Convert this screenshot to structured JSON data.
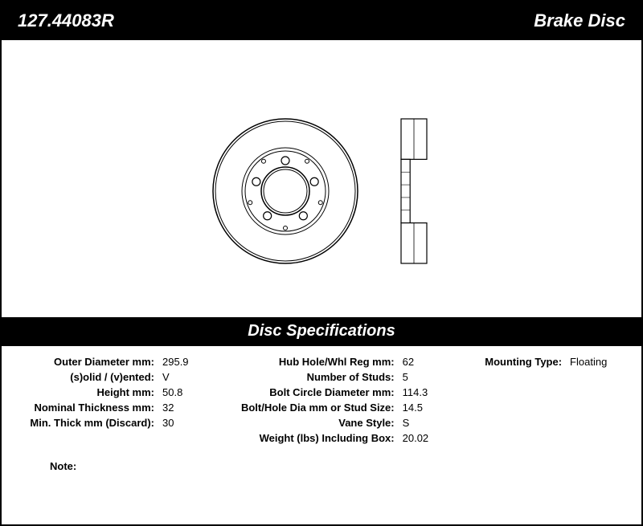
{
  "header": {
    "part_number": "127.44083R",
    "product_type": "Brake Disc"
  },
  "section_title": "Disc Specifications",
  "specs": {
    "col1": [
      {
        "label": "Outer Diameter mm:",
        "value": "295.9"
      },
      {
        "label": "(s)olid / (v)ented:",
        "value": "V"
      },
      {
        "label": "Height mm:",
        "value": "50.8"
      },
      {
        "label": "Nominal Thickness mm:",
        "value": "32"
      },
      {
        "label": "Min. Thick mm (Discard):",
        "value": "30"
      }
    ],
    "col2": [
      {
        "label": "Hub Hole/Whl Reg mm:",
        "value": "62"
      },
      {
        "label": "Number of Studs:",
        "value": "5"
      },
      {
        "label": "Bolt Circle Diameter mm:",
        "value": "114.3"
      },
      {
        "label": "Bolt/Hole Dia mm or Stud Size:",
        "value": "14.5"
      },
      {
        "label": "Vane Style:",
        "value": "S"
      },
      {
        "label": "Weight (lbs) Including Box:",
        "value": "20.02"
      }
    ],
    "col3": [
      {
        "label": "Mounting Type:",
        "value": "Floating"
      }
    ]
  },
  "note_label": "Note:",
  "diagram": {
    "front_outer_r": 90,
    "front_inner_r": 30,
    "hub_r": 50,
    "stud_count": 5,
    "stud_r": 5,
    "stud_orbit_r": 38,
    "small_hole_r": 2.5,
    "small_hole_orbit_r": 46,
    "stroke_color": "#000000",
    "fill_color": "#ffffff",
    "side_width": 32,
    "side_height": 180
  }
}
